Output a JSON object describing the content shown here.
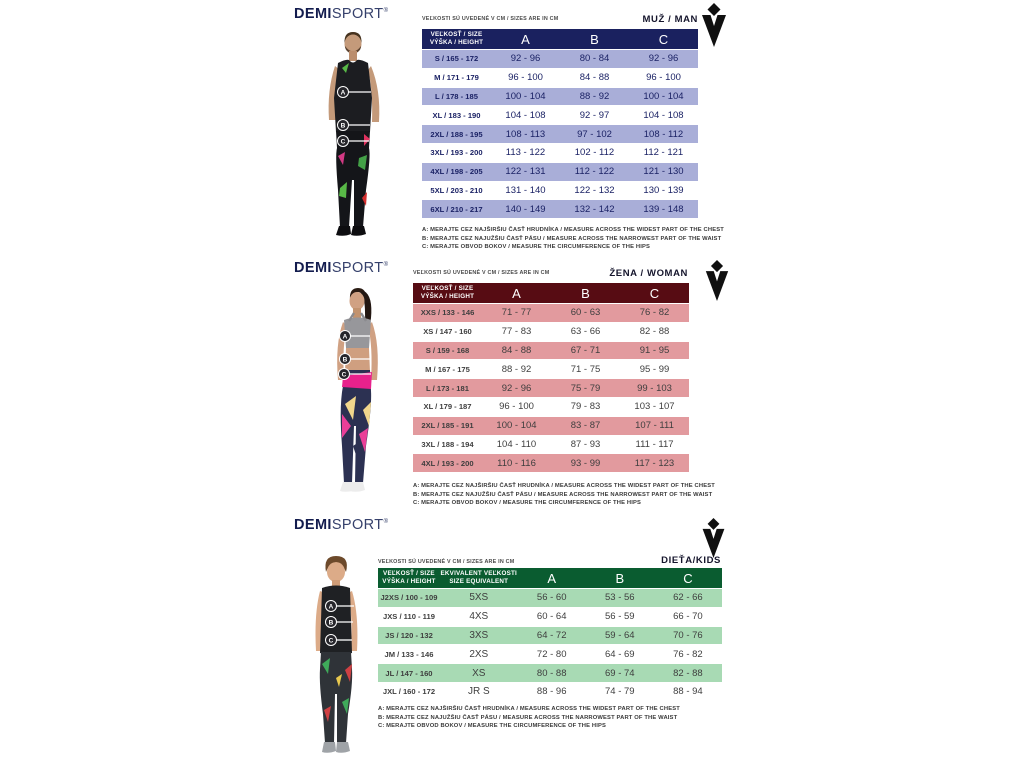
{
  "brand": {
    "demi": "DEMI",
    "sport": "SPORT",
    "mark": "®"
  },
  "sizes_note": "VEĽKOSTI SÚ UVEDENÉ V CM / SIZES ARE IN CM",
  "measure_notes": [
    "A: MERAJTE CEZ NAJŠIRŠIU ČASŤ HRUDNÍKA / MEASURE ACROSS THE WIDEST PART OF THE CHEST",
    "B: MERAJTE CEZ NAJUŽŠIU ČASŤ PÁSU / MEASURE ACROSS THE NARROWEST PART OF THE WAIST",
    "C: MERAJTE OBVOD BOKOV / MEASURE THE CIRCUMFERENCE OF THE HIPS"
  ],
  "markers": {
    "a": "A",
    "b": "B",
    "c": "C"
  },
  "colors": {
    "man_header": "#1a215f",
    "man_row": "#a9aed8",
    "man_text": "#1b2265",
    "woman_header": "#570c13",
    "woman_row": "#e29a9e",
    "woman_text": "#3e3e3e",
    "kids_header": "#0a5c30",
    "kids_row": "#a8dab4",
    "kids_text": "#3e3e3e"
  },
  "sections": [
    {
      "id": "man",
      "label": "MUŽ / MAN",
      "table": {
        "size_header": "VEĽKOSŤ / SIZE",
        "height_header": "VÝŠKA / HEIGHT",
        "columns": [
          "A",
          "B",
          "C"
        ],
        "rows": [
          {
            "size": "S / 165 - 172",
            "a": "92 - 96",
            "b": "80 - 84",
            "c": "92 - 96"
          },
          {
            "size": "M / 171 - 179",
            "a": "96 - 100",
            "b": "84 - 88",
            "c": "96 - 100"
          },
          {
            "size": "L / 178 - 185",
            "a": "100 - 104",
            "b": "88 - 92",
            "c": "100 - 104"
          },
          {
            "size": "XL / 183 - 190",
            "a": "104 - 108",
            "b": "92 - 97",
            "c": "104 - 108"
          },
          {
            "size": "2XL / 188 - 195",
            "a": "108 - 113",
            "b": "97 - 102",
            "c": "108 - 112"
          },
          {
            "size": "3XL / 193 - 200",
            "a": "113 - 122",
            "b": "102 - 112",
            "c": "112 - 121"
          },
          {
            "size": "4XL / 198 - 205",
            "a": "122 - 131",
            "b": "112 - 122",
            "c": "121 - 130"
          },
          {
            "size": "5XL / 203 - 210",
            "a": "131 - 140",
            "b": "122 - 132",
            "c": "130 - 139"
          },
          {
            "size": "6XL / 210 - 217",
            "a": "140 - 149",
            "b": "132 - 142",
            "c": "139 - 148"
          }
        ]
      }
    },
    {
      "id": "woman",
      "label": "ŽENA / WOMAN",
      "table": {
        "size_header": "VEĽKOSŤ / SIZE",
        "height_header": "VÝŠKA / HEIGHT",
        "columns": [
          "A",
          "B",
          "C"
        ],
        "rows": [
          {
            "size": "XXS / 133 - 146",
            "a": "71 - 77",
            "b": "60 - 63",
            "c": "76 - 82"
          },
          {
            "size": "XS / 147 - 160",
            "a": "77 - 83",
            "b": "63 - 66",
            "c": "82 - 88"
          },
          {
            "size": "S / 159 - 168",
            "a": "84 - 88",
            "b": "67 - 71",
            "c": "91 - 95"
          },
          {
            "size": "M / 167 - 175",
            "a": "88 - 92",
            "b": "71 - 75",
            "c": "95 - 99"
          },
          {
            "size": "L / 173 - 181",
            "a": "92 - 96",
            "b": "75 - 79",
            "c": "99 - 103"
          },
          {
            "size": "XL / 179 - 187",
            "a": "96 - 100",
            "b": "79 - 83",
            "c": "103 - 107"
          },
          {
            "size": "2XL / 185 - 191",
            "a": "100 - 104",
            "b": "83 - 87",
            "c": "107 - 111"
          },
          {
            "size": "3XL / 188 - 194",
            "a": "104 - 110",
            "b": "87 - 93",
            "c": "111 - 117"
          },
          {
            "size": "4XL / 193 - 200",
            "a": "110 - 116",
            "b": "93 - 99",
            "c": "117 - 123"
          }
        ]
      }
    },
    {
      "id": "kids",
      "label": "DIEŤA/KIDS",
      "table": {
        "size_header": "VEĽKOSŤ / SIZE",
        "height_header": "VÝŠKA / HEIGHT",
        "equiv_header": "EKVIVALENT VEĽKOSTI",
        "equiv_header2": "SIZE EQUIVALENT",
        "columns": [
          "A",
          "B",
          "C"
        ],
        "rows": [
          {
            "size": "J2XS / 100 - 109",
            "equiv": "5XS",
            "a": "56 - 60",
            "b": "53 - 56",
            "c": "62 - 66"
          },
          {
            "size": "JXS / 110 - 119",
            "equiv": "4XS",
            "a": "60 - 64",
            "b": "56 - 59",
            "c": "66 - 70"
          },
          {
            "size": "JS / 120 - 132",
            "equiv": "3XS",
            "a": "64 - 72",
            "b": "59 - 64",
            "c": "70 - 76"
          },
          {
            "size": "JM / 133 - 146",
            "equiv": "2XS",
            "a": "72 - 80",
            "b": "64 - 69",
            "c": "76 - 82"
          },
          {
            "size": "JL / 147 - 160",
            "equiv": "XS",
            "a": "80 - 88",
            "b": "69 - 74",
            "c": "82 - 88"
          },
          {
            "size": "JXL / 160 - 172",
            "equiv": "JR S",
            "a": "88 - 96",
            "b": "74 - 79",
            "c": "88 - 94"
          }
        ]
      }
    }
  ]
}
